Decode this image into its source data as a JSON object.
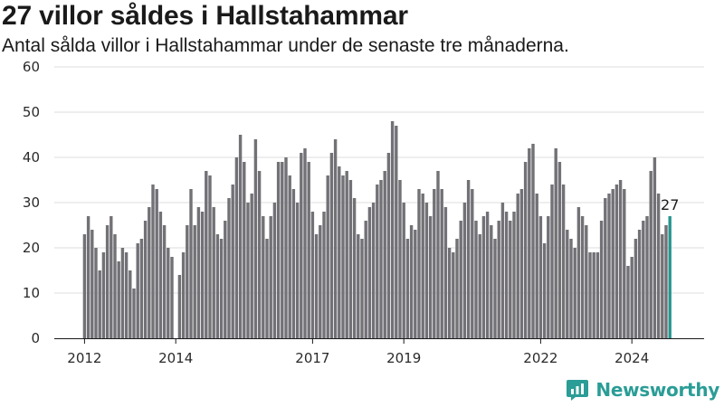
{
  "title": "27 villor såldes i Hallstahammar",
  "subtitle": "Antal sålda villor i Hallstahammar under de senaste tre månaderna.",
  "brand": {
    "name": "Newsworthy",
    "icon": "newsworthy-logo-icon",
    "color": "#2a9d96"
  },
  "chart_data": {
    "type": "bar",
    "title": "27 villor såldes i Hallstahammar",
    "subtitle": "Antal sålda villor i Hallstahammar under de senaste tre månaderna.",
    "ylim": [
      0,
      60
    ],
    "yticks": [
      0,
      10,
      20,
      30,
      40,
      50,
      60
    ],
    "grid": true,
    "frequency": "monthly",
    "first_period": "2012-01",
    "xticks": [
      {
        "label": "2012",
        "index": 0
      },
      {
        "label": "2014",
        "index": 24
      },
      {
        "label": "2017",
        "index": 60
      },
      {
        "label": "2019",
        "index": 84
      },
      {
        "label": "2022",
        "index": 120
      },
      {
        "label": "2024",
        "index": 144
      }
    ],
    "values": [
      23,
      27,
      24,
      20,
      15,
      19,
      25,
      27,
      23,
      17,
      20,
      19,
      15,
      11,
      21,
      22,
      26,
      29,
      34,
      33,
      28,
      25,
      20,
      18,
      null,
      14,
      19,
      25,
      33,
      25,
      29,
      28,
      37,
      36,
      29,
      23,
      22,
      26,
      31,
      34,
      40,
      45,
      39,
      30,
      32,
      44,
      37,
      27,
      22,
      27,
      30,
      39,
      39,
      40,
      36,
      33,
      30,
      41,
      42,
      39,
      28,
      23,
      25,
      28,
      36,
      41,
      44,
      38,
      36,
      37,
      35,
      31,
      23,
      22,
      26,
      29,
      30,
      34,
      35,
      37,
      41,
      48,
      47,
      35,
      30,
      22,
      25,
      24,
      33,
      32,
      30,
      27,
      33,
      37,
      33,
      29,
      20,
      19,
      22,
      26,
      30,
      35,
      33,
      26,
      23,
      27,
      28,
      25,
      22,
      26,
      30,
      28,
      26,
      28,
      32,
      33,
      39,
      42,
      43,
      32,
      27,
      21,
      27,
      34,
      42,
      39,
      34,
      24,
      22,
      20,
      29,
      27,
      25,
      19,
      19,
      19,
      26,
      31,
      32,
      33,
      34,
      35,
      33,
      16,
      18,
      22,
      24,
      26,
      27,
      37,
      40,
      32,
      23,
      25,
      27
    ],
    "colors": {
      "bar": "#727176",
      "highlight": "#27968f",
      "grid": "#dcdcdc"
    },
    "annotation": {
      "index": 154,
      "text": "27"
    }
  }
}
